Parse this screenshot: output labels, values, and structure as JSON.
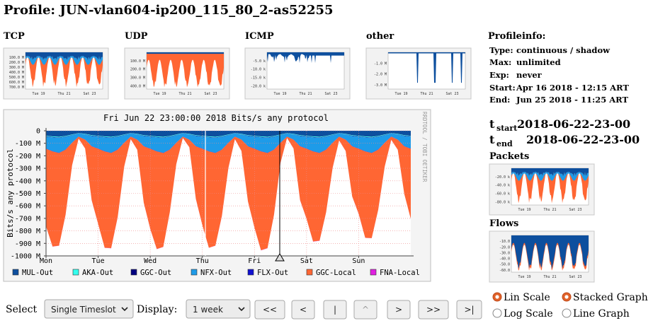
{
  "header": {
    "title": "Profile: JUN-vlan604-ip200_115_80_2-as52255"
  },
  "thumbnails": [
    {
      "title": "TCP",
      "yticks": [
        "100.0 M",
        "200.0 M",
        "300.0 M",
        "400.0 M",
        "500.0 M",
        "600.0 M",
        "700.0 M"
      ],
      "xticks": [
        "Tue 19",
        "Thu 21",
        "Sat 23"
      ]
    },
    {
      "title": "UDP",
      "yticks": [
        "100.0 M",
        "200.0 M",
        "300.0 M",
        "400.0 M"
      ],
      "xticks": [
        "Tue 19",
        "Thu 21",
        "Sat 23"
      ]
    },
    {
      "title": "ICMP",
      "yticks": [
        "-5.0 k",
        "-10.0 k",
        "-15.0 k",
        "-20.0 k"
      ],
      "xticks": [
        "Tue 19",
        "Thu 21",
        "Sat 23"
      ]
    },
    {
      "title": "other",
      "yticks": [
        "-1.0 M",
        "-2.0 M",
        "-3.0 M"
      ],
      "xticks": [
        "Tue 19",
        "Thu 21",
        "Sat 23"
      ]
    }
  ],
  "profile_info": {
    "title": "Profileinfo:",
    "rows": [
      [
        "Type:",
        "continuous / shadow"
      ],
      [
        "Max:",
        "unlimited"
      ],
      [
        "Exp:",
        "never"
      ],
      [
        "Start:",
        "Apr 16 2018 - 12:15 ART"
      ],
      [
        "End:",
        "Jun 25 2018 - 11:25 ART"
      ]
    ]
  },
  "timeslot": {
    "start": {
      "t": "t",
      "sub": "start",
      "value": "2018-06-22-23-00"
    },
    "end": {
      "t": "t",
      "sub": "end",
      "value": "2018-06-22-23-00"
    }
  },
  "side_graphs": [
    {
      "title": "Packets",
      "yticks": [
        "-20.0 k",
        "-40.0 k",
        "-60.0 k",
        "-80.0 k"
      ],
      "xticks": [
        "Tue 19",
        "Thu 21",
        "Sat 23"
      ]
    },
    {
      "title": "Flows",
      "yticks": [
        "-10.0",
        "-20.0",
        "-30.0",
        "-40.0",
        "-50.0",
        "-60.0"
      ],
      "xticks": [
        "Tue 19",
        "Thu 21",
        "Sat 23"
      ]
    }
  ],
  "chart_data": {
    "type": "area",
    "stacked": true,
    "grid": true,
    "title": "Fri Jun 22 23:00:00 2018 Bits/s any protocol",
    "y_label": "Bits/s any protocol",
    "side_label": "RRDTOOL / TOBI OETIKER",
    "ylim": [
      -1000,
      0
    ],
    "yticks": [
      0,
      {
        "value": -100,
        "label": "-100 M"
      },
      {
        "value": -200,
        "label": "-200 M"
      },
      {
        "value": -300,
        "label": "-300 M"
      },
      {
        "value": -400,
        "label": "-400 M"
      },
      {
        "value": -500,
        "label": "-500 M"
      },
      {
        "value": -600,
        "label": "-600 M"
      },
      {
        "value": -700,
        "label": "-700 M"
      },
      {
        "value": -800,
        "label": "-800 M"
      },
      {
        "value": -900,
        "label": "-900 M"
      },
      {
        "value": -1000,
        "label": "-1000 M"
      }
    ],
    "categories": [
      "Mon",
      null,
      null,
      null,
      null,
      null,
      null,
      null,
      "Tue",
      null,
      null,
      null,
      null,
      null,
      null,
      null,
      "Wed",
      null,
      null,
      null,
      null,
      null,
      null,
      null,
      "Thu",
      null,
      null,
      null,
      null,
      null,
      null,
      null,
      "Fri",
      null,
      null,
      null,
      null,
      null,
      null,
      null,
      "Sat",
      null,
      null,
      null,
      null,
      null,
      null,
      null,
      "Sun",
      null,
      null,
      null,
      null,
      null,
      null,
      null,
      null
    ],
    "series": [
      {
        "name": "MUL-Out",
        "color": "#0d4f9e",
        "values": [
          -40,
          -45,
          -48,
          -42,
          -30,
          -18,
          -25,
          -35,
          -40,
          -45,
          -48,
          -42,
          -30,
          -18,
          -25,
          -35,
          -40,
          -45,
          -48,
          -42,
          -30,
          -18,
          -25,
          -35,
          -40,
          -45,
          -48,
          -42,
          -30,
          -18,
          -25,
          -35,
          -40,
          -45,
          -48,
          -42,
          -30,
          -18,
          -25,
          -35,
          -40,
          -45,
          -48,
          -42,
          -30,
          -18,
          -25,
          -35,
          -40,
          -45,
          -48,
          -42,
          -30,
          -18,
          -25,
          -35,
          -40
        ]
      },
      {
        "name": "AKA-Out",
        "color": "#33ffee",
        "values": [
          -4,
          -5,
          -5,
          -4,
          -3,
          -2,
          -3,
          -4,
          -4,
          -5,
          -5,
          -4,
          -3,
          -2,
          -3,
          -4,
          -4,
          -5,
          -5,
          -4,
          -3,
          -2,
          -3,
          -4,
          -4,
          -5,
          -5,
          -4,
          -3,
          -2,
          -3,
          -4,
          -4,
          -5,
          -5,
          -4,
          -3,
          -2,
          -3,
          -4,
          -4,
          -5,
          -5,
          -4,
          -3,
          -2,
          -3,
          -4,
          -4,
          -5,
          -5,
          -4,
          -3,
          -2,
          -3,
          -4,
          -4
        ]
      },
      {
        "name": "GGC-Out",
        "color": "#000080",
        "values": [
          -3,
          -3,
          -3,
          -3,
          -2,
          -1,
          -2,
          -3,
          -3,
          -3,
          -3,
          -3,
          -2,
          -1,
          -2,
          -3,
          -3,
          -3,
          -3,
          -3,
          -2,
          -1,
          -2,
          -3,
          -3,
          -3,
          -3,
          -3,
          -2,
          -1,
          -2,
          -3,
          -3,
          -3,
          -3,
          -3,
          -2,
          -1,
          -2,
          -3,
          -3,
          -3,
          -3,
          -3,
          -2,
          -1,
          -2,
          -3,
          -3,
          -3,
          -3,
          -3,
          -2,
          -1,
          -2,
          -3,
          -3
        ]
      },
      {
        "name": "NFX-Out",
        "color": "#1e9be8",
        "values": [
          -95,
          -110,
          -120,
          -100,
          -60,
          -25,
          -40,
          -80,
          -95,
          -110,
          -120,
          -100,
          -60,
          -25,
          -40,
          -80,
          -95,
          -110,
          -120,
          -100,
          -60,
          -25,
          -40,
          -80,
          -95,
          -110,
          -120,
          -100,
          -60,
          -25,
          -40,
          -80,
          -95,
          -110,
          -120,
          -100,
          -60,
          -25,
          -40,
          -80,
          -95,
          -110,
          -120,
          -100,
          -60,
          -25,
          -40,
          -80,
          -95,
          -110,
          -120,
          -100,
          -60,
          -25,
          -40,
          -80,
          -95
        ]
      },
      {
        "name": "FLX-Out",
        "color": "#1010d0",
        "values": [
          -2,
          -2,
          -2,
          -2,
          -1,
          -1,
          -1,
          -2,
          -2,
          -2,
          -2,
          -2,
          -1,
          -1,
          -1,
          -2,
          -2,
          -2,
          -2,
          -2,
          -1,
          -1,
          -1,
          -2,
          -2,
          -2,
          -2,
          -2,
          -1,
          -1,
          -1,
          -2,
          -2,
          -2,
          -2,
          -2,
          -1,
          -1,
          -1,
          -2,
          -2,
          -2,
          -2,
          -2,
          -1,
          -1,
          -1,
          -2,
          -2,
          -2,
          -2,
          -2,
          -1,
          -1,
          -1,
          -2,
          -2
        ]
      },
      {
        "name": "GGC-Local",
        "color": "#ff6633",
        "values": [
          -620,
          -760,
          -740,
          -520,
          -180,
          -15,
          -70,
          -430,
          -600,
          -770,
          -760,
          -540,
          -190,
          -20,
          -80,
          -450,
          -640,
          -780,
          -750,
          -500,
          -170,
          -10,
          -60,
          -420,
          -610,
          -770,
          -740,
          -530,
          -200,
          -20,
          -90,
          -440,
          -630,
          -790,
          -760,
          -520,
          -160,
          -10,
          -70,
          -430,
          -560,
          -720,
          -700,
          -500,
          -200,
          -30,
          -90,
          -400,
          -520,
          -690,
          -680,
          -480,
          -190,
          -25,
          -80,
          -380,
          -560
        ]
      },
      {
        "name": "FNA-Local",
        "color": "#e020e0",
        "values": [
          -1,
          -1,
          -1,
          -1,
          -1,
          -1,
          -1,
          -1,
          -1,
          -1,
          -1,
          -1,
          -1,
          -1,
          -1,
          -1,
          -1,
          -1,
          -1,
          -1,
          -1,
          -1,
          -1,
          -1,
          -1,
          -1,
          -1,
          -1,
          -1,
          -1,
          -1,
          -1,
          -1,
          -1,
          -1,
          -1,
          -1,
          -1,
          -1,
          -1,
          -1,
          -1,
          -1,
          -1,
          -1,
          -1,
          -1,
          -1,
          -1,
          -1,
          -1,
          -1,
          -1,
          -1,
          -1,
          -1,
          -1
        ]
      }
    ]
  },
  "controls": {
    "select_label": "Select",
    "select_value": "Single Timeslot",
    "display_label": "Display:",
    "display_value": "1 week",
    "buttons": [
      "<<",
      "<",
      "|",
      "^",
      ">",
      ">>",
      ">|"
    ],
    "radios": [
      {
        "label": "Lin Scale",
        "checked": true
      },
      {
        "label": "Log Scale",
        "checked": false
      },
      {
        "label": "Stacked Graph",
        "checked": true
      },
      {
        "label": "Line Graph",
        "checked": false
      }
    ]
  }
}
